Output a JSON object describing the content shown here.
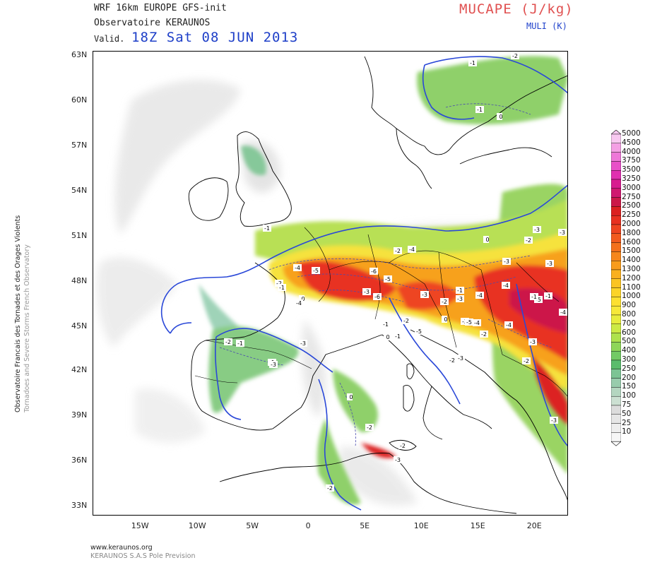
{
  "header": {
    "line1": "WRF 16km EUROPE  GFS-init",
    "line2": "Observatoire KERAUNOS",
    "valid_label": "Valid.",
    "valid_time": "18Z Sat 08 JUN 2013",
    "field_title": "MUCAPE (J/kg)",
    "field_sub": "MULI (K)"
  },
  "side_credit": {
    "line1": "Observatoire Francais des Tornades et des Orages Violents",
    "line2": "Tornadoes and Severe Storms French Observatory"
  },
  "axes": {
    "lat_labels": [
      "63N",
      "60N",
      "57N",
      "54N",
      "51N",
      "48N",
      "45N",
      "42N",
      "39N",
      "36N",
      "33N"
    ],
    "lon_labels": [
      "15W",
      "10W",
      "5W",
      "0",
      "5E",
      "10E",
      "15E",
      "20E"
    ]
  },
  "legend": {
    "levels": [
      "5000",
      "4500",
      "4000",
      "3750",
      "3500",
      "3250",
      "3000",
      "2750",
      "2500",
      "2250",
      "2000",
      "1800",
      "1600",
      "1500",
      "1400",
      "1300",
      "1200",
      "1100",
      "1000",
      "900",
      "800",
      "700",
      "600",
      "500",
      "400",
      "300",
      "250",
      "200",
      "150",
      "100",
      "75",
      "50",
      "25",
      "10"
    ],
    "colors": [
      "#f8c8f0",
      "#f4a0e4",
      "#ee78d8",
      "#e850c8",
      "#e030b0",
      "#d81c90",
      "#d01870",
      "#cc1848",
      "#dc2020",
      "#e83020",
      "#ee4420",
      "#f25a1e",
      "#f4701c",
      "#f6861c",
      "#f89c1c",
      "#fab01e",
      "#fbc422",
      "#fcd428",
      "#fde030",
      "#f7e838",
      "#e8ec3c",
      "#ccea44",
      "#aee24c",
      "#8ed658",
      "#72ca64",
      "#5abc6c",
      "#7cc494",
      "#98ccac",
      "#b4d6c0",
      "#cce0d2",
      "#dcdcdc",
      "#e6e6e6",
      "#eeeeee",
      "#f6f6f6"
    ]
  },
  "muli_labels": [
    {
      "t": "-2"
    },
    {
      "t": "-1"
    },
    {
      "t": "-1"
    },
    {
      "t": "0"
    },
    {
      "t": "-2"
    },
    {
      "t": "-1"
    },
    {
      "t": "-1"
    },
    {
      "t": "-3"
    },
    {
      "t": "-3"
    },
    {
      "t": "-2"
    },
    {
      "t": "-4"
    },
    {
      "t": "-4"
    },
    {
      "t": "-5"
    },
    {
      "t": "-2"
    },
    {
      "t": "-1"
    },
    {
      "t": "0"
    },
    {
      "t": "-5"
    },
    {
      "t": "-6"
    },
    {
      "t": "-3"
    },
    {
      "t": "-3"
    },
    {
      "t": "-2"
    },
    {
      "t": "-3"
    },
    {
      "t": "-4"
    },
    {
      "t": "-4"
    },
    {
      "t": "-3"
    },
    {
      "t": "-3"
    },
    {
      "t": "-3"
    },
    {
      "t": "-4"
    },
    {
      "t": "-5"
    },
    {
      "t": "-1"
    },
    {
      "t": "-4"
    },
    {
      "t": "-2"
    },
    {
      "t": "-3"
    },
    {
      "t": "0"
    },
    {
      "t": "-2"
    },
    {
      "t": "-1"
    },
    {
      "t": "-1"
    },
    {
      "t": "0"
    },
    {
      "t": "-2"
    },
    {
      "t": "-1"
    },
    {
      "t": "-2"
    },
    {
      "t": "-5"
    },
    {
      "t": "-6"
    },
    {
      "t": "-1"
    },
    {
      "t": "-4"
    },
    {
      "t": "-5"
    },
    {
      "t": "-4"
    },
    {
      "t": "-3"
    },
    {
      "t": "0"
    },
    {
      "t": "-2"
    },
    {
      "t": "-2"
    },
    {
      "t": "-3"
    },
    {
      "t": "-3"
    },
    {
      "t": "-2"
    },
    {
      "t": "-2"
    },
    {
      "t": "0"
    },
    {
      "t": "-3"
    },
    {
      "t": "-2"
    },
    {
      "t": "-1"
    }
  ],
  "footer": {
    "url": "www.keraunos.org",
    "company": "KERAUNOS S.A.S Pole Prevision"
  }
}
